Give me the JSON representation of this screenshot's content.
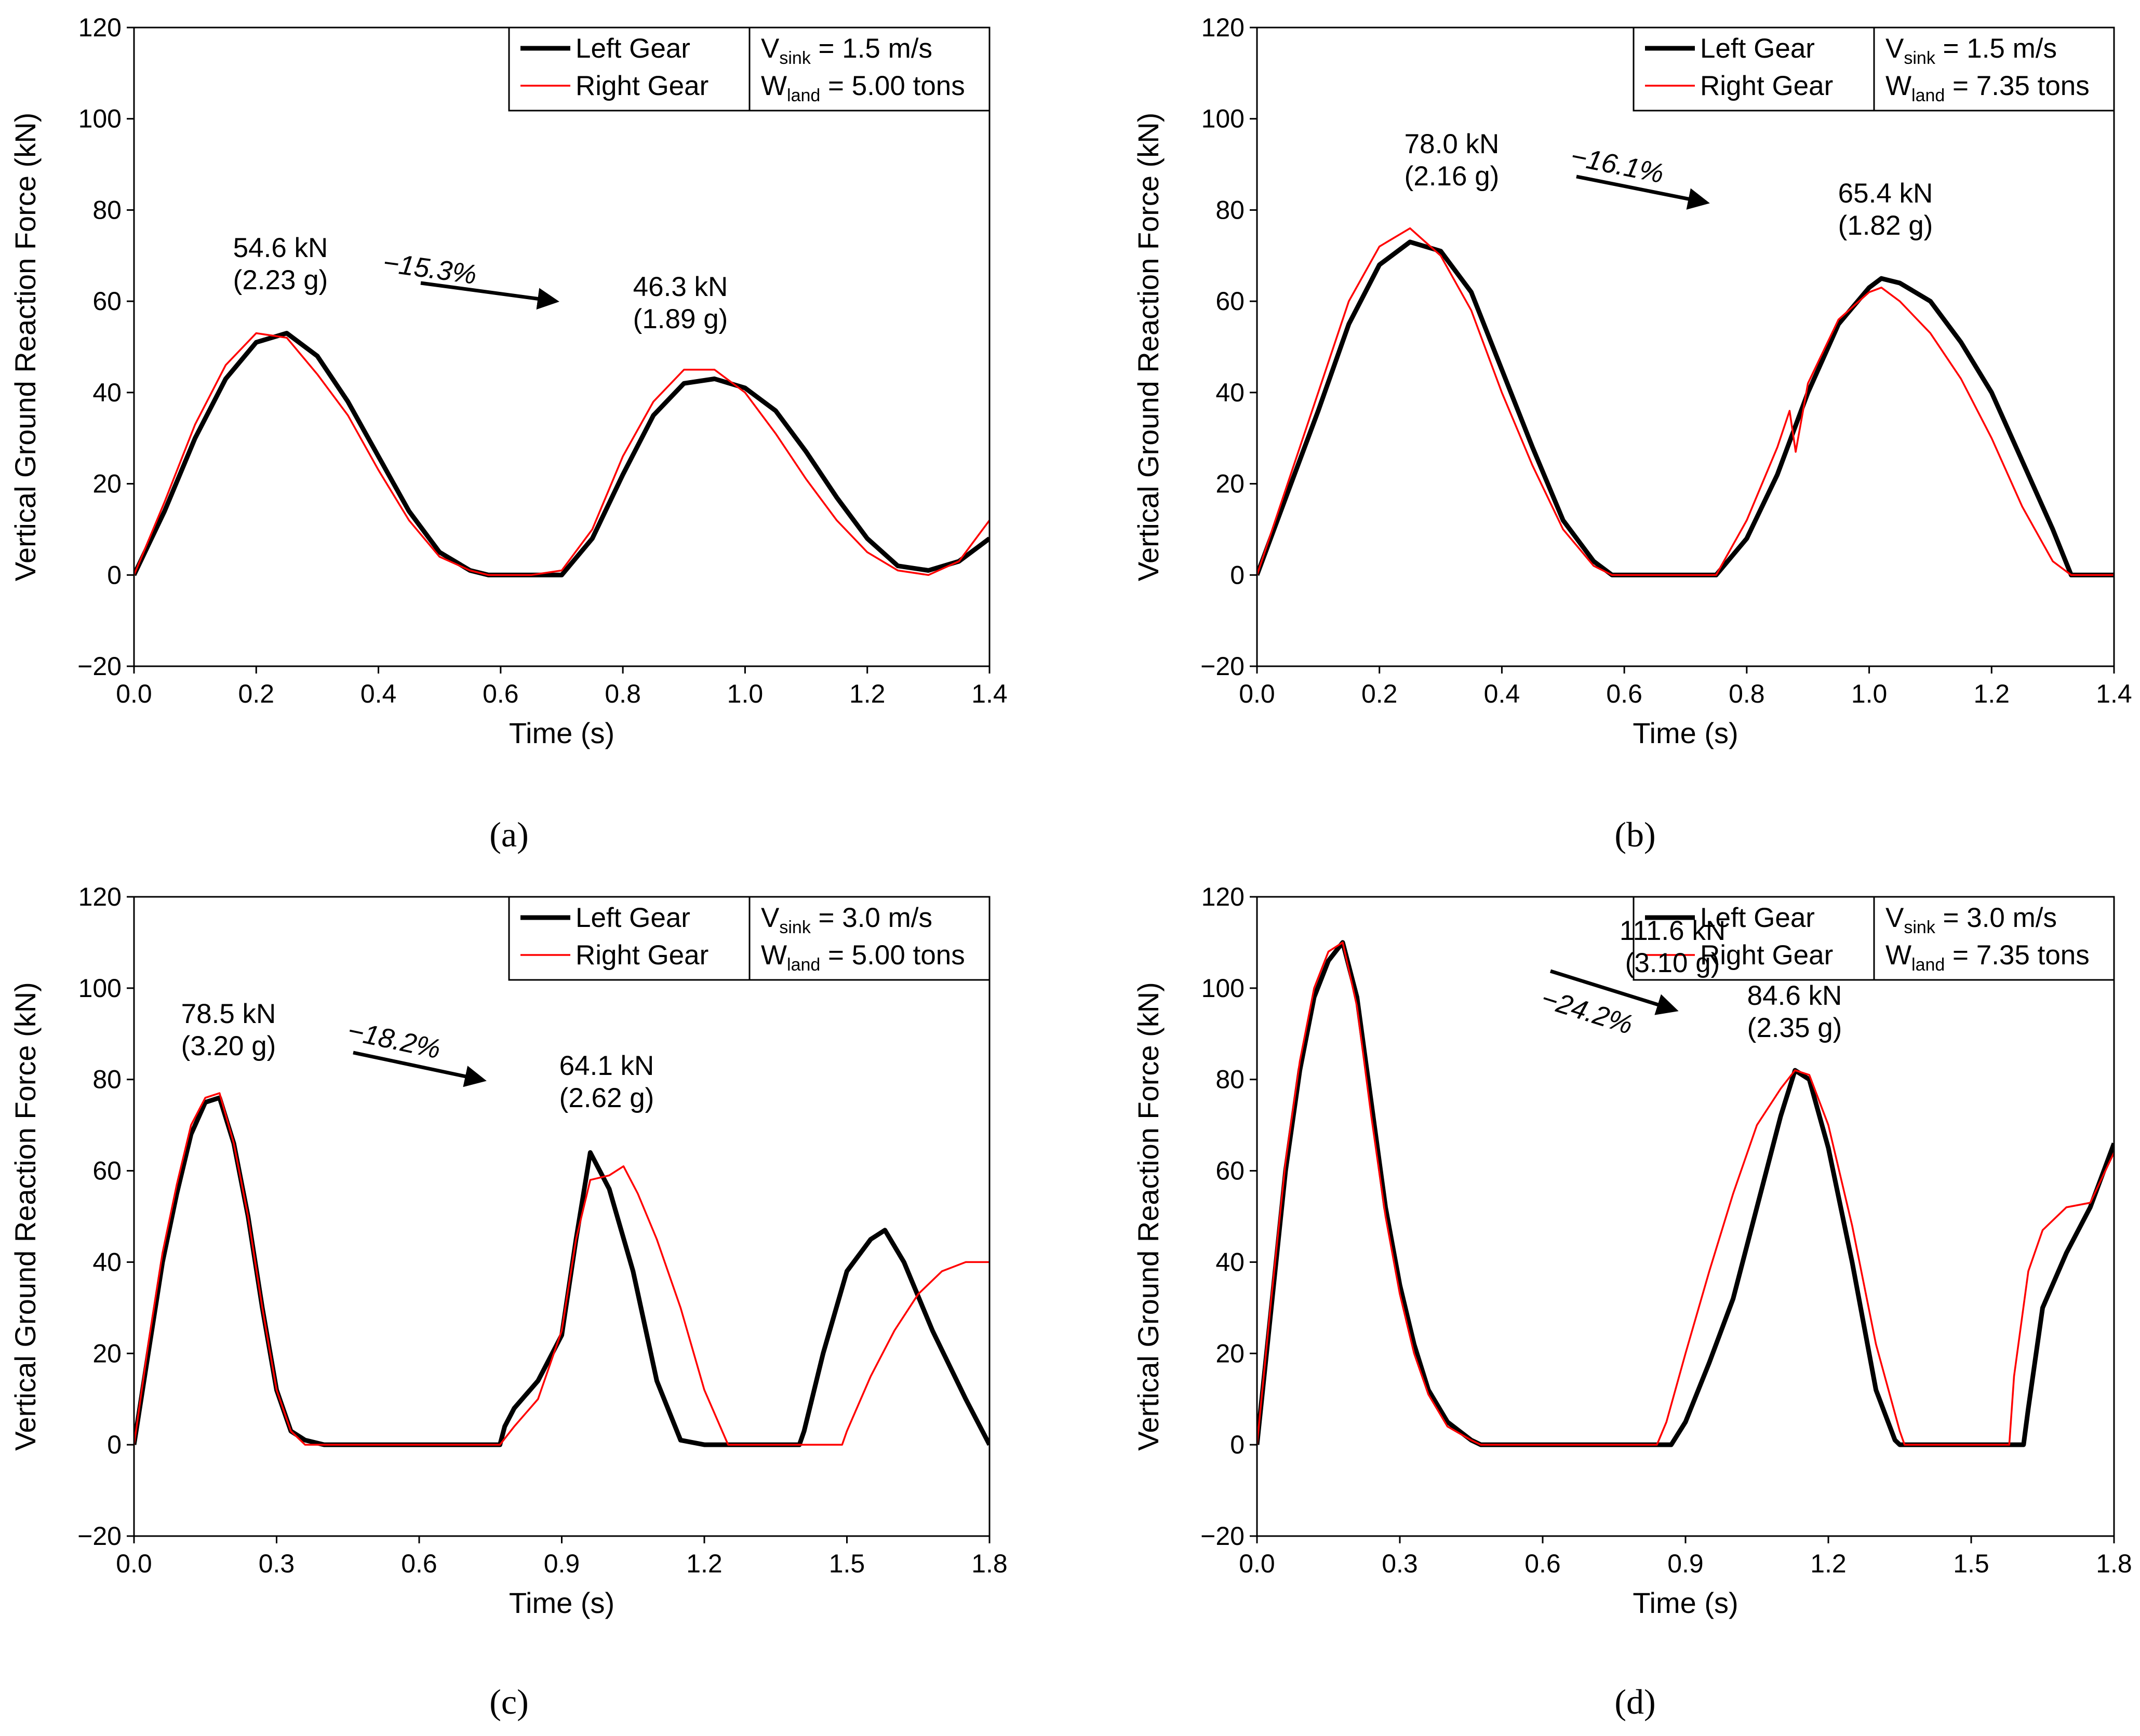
{
  "colors": {
    "left_gear": "#000000",
    "right_gear": "#ff0000",
    "axis": "#000000"
  },
  "chart_data": [
    {
      "type": "line",
      "panel_label": "(a)",
      "xlabel": "Time (s)",
      "ylabel": "Vertical Ground Reaction Force (kN)",
      "xlim": [
        0,
        1.4
      ],
      "ylim": [
        -20,
        120
      ],
      "xticks": [
        "0.0",
        "0.2",
        "0.4",
        "0.6",
        "0.8",
        "1.0",
        "1.2",
        "1.4"
      ],
      "yticks": [
        "−20",
        "0",
        "20",
        "40",
        "60",
        "80",
        "100",
        "120"
      ],
      "legend": {
        "left_label": "Left Gear",
        "right_label": "Right Gear",
        "vsink_prefix": "V",
        "vsink_sub": "sink",
        "vsink_value": " =  1.5 m/s",
        "wland_prefix": "W",
        "wland_sub": "land",
        "wland_value": " = 5.00 tons"
      },
      "annotations": {
        "peak1": "54.6 kN",
        "peak1_g": "(2.23 g)",
        "peak2": "46.3 kN",
        "peak2_g": "(1.89 g)",
        "reduction": "−15.3%"
      },
      "series": [
        {
          "name": "Left Gear",
          "x": [
            0,
            0.05,
            0.1,
            0.15,
            0.2,
            0.25,
            0.3,
            0.35,
            0.4,
            0.45,
            0.5,
            0.55,
            0.58,
            0.6,
            0.65,
            0.7,
            0.75,
            0.8,
            0.85,
            0.9,
            0.95,
            1.0,
            1.05,
            1.1,
            1.15,
            1.2,
            1.25,
            1.3,
            1.35,
            1.4
          ],
          "y": [
            0,
            14,
            30,
            43,
            51,
            53,
            48,
            38,
            26,
            14,
            5,
            1,
            0,
            0,
            0,
            0,
            8,
            22,
            35,
            42,
            43,
            41,
            36,
            27,
            17,
            8,
            2,
            1,
            3,
            8
          ]
        },
        {
          "name": "Right Gear",
          "x": [
            0,
            0.05,
            0.1,
            0.15,
            0.2,
            0.25,
            0.3,
            0.35,
            0.4,
            0.45,
            0.5,
            0.55,
            0.58,
            0.6,
            0.65,
            0.7,
            0.75,
            0.8,
            0.85,
            0.9,
            0.95,
            1.0,
            1.05,
            1.1,
            1.15,
            1.2,
            1.25,
            1.3,
            1.35,
            1.4
          ],
          "y": [
            0,
            16,
            33,
            46,
            53,
            52,
            44,
            35,
            23,
            12,
            4,
            1,
            0,
            0,
            0,
            1,
            10,
            26,
            38,
            45,
            45,
            40,
            31,
            21,
            12,
            5,
            1,
            0,
            3,
            12
          ]
        }
      ]
    },
    {
      "type": "line",
      "panel_label": "(b)",
      "xlabel": "Time (s)",
      "ylabel": "Vertical Ground Reaction Force (kN)",
      "xlim": [
        0,
        1.4
      ],
      "ylim": [
        -20,
        120
      ],
      "xticks": [
        "0.0",
        "0.2",
        "0.4",
        "0.6",
        "0.8",
        "1.0",
        "1.2",
        "1.4"
      ],
      "yticks": [
        "−20",
        "0",
        "20",
        "40",
        "60",
        "80",
        "100",
        "120"
      ],
      "legend": {
        "left_label": "Left Gear",
        "right_label": "Right Gear",
        "vsink_prefix": "V",
        "vsink_sub": "sink",
        "vsink_value": " =  1.5 m/s",
        "wland_prefix": "W",
        "wland_sub": "land",
        "wland_value": " = 7.35 tons"
      },
      "annotations": {
        "peak1": "78.0 kN",
        "peak1_g": "(2.16 g)",
        "peak2": "65.4 kN",
        "peak2_g": "(1.82 g)",
        "reduction": "−16.1%"
      },
      "series": [
        {
          "name": "Left Gear",
          "x": [
            0,
            0.05,
            0.1,
            0.15,
            0.2,
            0.25,
            0.3,
            0.35,
            0.4,
            0.45,
            0.5,
            0.55,
            0.58,
            0.6,
            0.7,
            0.75,
            0.8,
            0.85,
            0.9,
            0.95,
            1.0,
            1.02,
            1.05,
            1.1,
            1.15,
            1.2,
            1.25,
            1.3,
            1.33,
            1.35,
            1.4
          ],
          "y": [
            0,
            18,
            36,
            55,
            68,
            73,
            71,
            62,
            45,
            28,
            12,
            3,
            0,
            0,
            0,
            0,
            8,
            22,
            40,
            55,
            63,
            65,
            64,
            60,
            51,
            40,
            25,
            10,
            0,
            0,
            0
          ]
        },
        {
          "name": "Right Gear",
          "x": [
            0,
            0.05,
            0.1,
            0.15,
            0.2,
            0.25,
            0.3,
            0.35,
            0.4,
            0.45,
            0.5,
            0.55,
            0.58,
            0.6,
            0.7,
            0.75,
            0.8,
            0.85,
            0.87,
            0.88,
            0.9,
            0.95,
            1.0,
            1.02,
            1.05,
            1.1,
            1.15,
            1.2,
            1.25,
            1.3,
            1.33,
            1.35,
            1.4
          ],
          "y": [
            0,
            20,
            40,
            60,
            72,
            76,
            70,
            58,
            40,
            24,
            10,
            2,
            0,
            0,
            0,
            0,
            12,
            28,
            36,
            27,
            42,
            56,
            62,
            63,
            60,
            53,
            43,
            30,
            15,
            3,
            0,
            0,
            0
          ]
        }
      ]
    },
    {
      "type": "line",
      "panel_label": "(c)",
      "xlabel": "Time (s)",
      "ylabel": "Vertical Ground Reaction Force (kN)",
      "xlim": [
        0,
        1.8
      ],
      "ylim": [
        -20,
        120
      ],
      "xticks": [
        "0.0",
        "0.3",
        "0.6",
        "0.9",
        "1.2",
        "1.5",
        "1.8"
      ],
      "yticks": [
        "−20",
        "0",
        "20",
        "40",
        "60",
        "80",
        "100",
        "120"
      ],
      "legend": {
        "left_label": "Left Gear",
        "right_label": "Right Gear",
        "vsink_prefix": "V",
        "vsink_sub": "sink",
        "vsink_value": " =  3.0 m/s",
        "wland_prefix": "W",
        "wland_sub": "land",
        "wland_value": " = 5.00 tons"
      },
      "annotations": {
        "peak1": "78.5 kN",
        "peak1_g": "(3.20 g)",
        "peak2": "64.1 kN",
        "peak2_g": "(2.62 g)",
        "reduction": "−18.2%"
      },
      "series": [
        {
          "name": "Left Gear",
          "x": [
            0,
            0.03,
            0.06,
            0.09,
            0.12,
            0.15,
            0.18,
            0.21,
            0.24,
            0.27,
            0.3,
            0.33,
            0.36,
            0.4,
            0.6,
            0.77,
            0.78,
            0.8,
            0.85,
            0.9,
            0.93,
            0.96,
            0.98,
            1.0,
            1.05,
            1.1,
            1.15,
            1.2,
            1.4,
            1.41,
            1.45,
            1.5,
            1.55,
            1.58,
            1.62,
            1.68,
            1.75,
            1.8
          ],
          "y": [
            0,
            20,
            40,
            55,
            68,
            75,
            76,
            66,
            50,
            30,
            12,
            3,
            1,
            0,
            0,
            0,
            4,
            8,
            14,
            24,
            45,
            64,
            60,
            56,
            38,
            14,
            1,
            0,
            0,
            3,
            20,
            38,
            45,
            47,
            40,
            25,
            10,
            0
          ]
        },
        {
          "name": "Right Gear",
          "x": [
            0,
            0.03,
            0.06,
            0.09,
            0.12,
            0.15,
            0.18,
            0.21,
            0.24,
            0.27,
            0.3,
            0.33,
            0.36,
            0.4,
            0.6,
            0.77,
            0.8,
            0.85,
            0.9,
            0.93,
            0.96,
            1.0,
            1.03,
            1.06,
            1.1,
            1.15,
            1.2,
            1.25,
            1.3,
            1.49,
            1.5,
            1.55,
            1.6,
            1.65,
            1.7,
            1.75,
            1.8
          ],
          "y": [
            0,
            22,
            42,
            57,
            70,
            76,
            77,
            66,
            50,
            30,
            12,
            3,
            0,
            0,
            0,
            0,
            4,
            10,
            25,
            45,
            58,
            59,
            61,
            55,
            45,
            30,
            12,
            0,
            0,
            0,
            3,
            15,
            25,
            33,
            38,
            40,
            40
          ]
        }
      ]
    },
    {
      "type": "line",
      "panel_label": "(d)",
      "xlabel": "Time (s)",
      "ylabel": "Vertical Ground Reaction Force (kN)",
      "xlim": [
        0,
        1.8
      ],
      "ylim": [
        -20,
        120
      ],
      "xticks": [
        "0.0",
        "0.3",
        "0.6",
        "0.9",
        "1.2",
        "1.5",
        "1.8"
      ],
      "yticks": [
        "−20",
        "0",
        "20",
        "40",
        "60",
        "80",
        "100",
        "120"
      ],
      "legend": {
        "left_label": "Left Gear",
        "right_label": "Right Gear",
        "vsink_prefix": "V",
        "vsink_sub": "sink",
        "vsink_value": " =  3.0 m/s",
        "wland_prefix": "W",
        "wland_sub": "land",
        "wland_value": " = 7.35 tons"
      },
      "annotations": {
        "peak1": "111.6 kN",
        "peak1_g": "(3.10 g)",
        "peak2": "84.6 kN",
        "peak2_g": "(2.35 g)",
        "reduction": "−24.2%"
      },
      "series": [
        {
          "name": "Left Gear",
          "x": [
            0,
            0.03,
            0.06,
            0.09,
            0.12,
            0.15,
            0.18,
            0.21,
            0.24,
            0.27,
            0.3,
            0.33,
            0.36,
            0.4,
            0.45,
            0.47,
            0.6,
            0.87,
            0.9,
            0.95,
            1.0,
            1.05,
            1.1,
            1.13,
            1.16,
            1.2,
            1.25,
            1.3,
            1.34,
            1.35,
            1.61,
            1.62,
            1.65,
            1.7,
            1.75,
            1.8
          ],
          "y": [
            0,
            30,
            60,
            82,
            98,
            106,
            110,
            98,
            75,
            52,
            35,
            22,
            12,
            5,
            1,
            0,
            0,
            0,
            5,
            18,
            32,
            52,
            72,
            82,
            80,
            65,
            40,
            12,
            1,
            0,
            0,
            8,
            30,
            42,
            52,
            66
          ]
        },
        {
          "name": "Right Gear",
          "x": [
            0,
            0.03,
            0.06,
            0.09,
            0.12,
            0.15,
            0.18,
            0.21,
            0.24,
            0.27,
            0.3,
            0.33,
            0.36,
            0.4,
            0.45,
            0.47,
            0.6,
            0.84,
            0.86,
            0.9,
            0.95,
            1.0,
            1.05,
            1.1,
            1.13,
            1.16,
            1.2,
            1.25,
            1.3,
            1.35,
            1.36,
            1.58,
            1.59,
            1.62,
            1.65,
            1.7,
            1.75,
            1.8
          ],
          "y": [
            0,
            32,
            62,
            84,
            100,
            108,
            110,
            96,
            72,
            50,
            33,
            20,
            11,
            4,
            1,
            0,
            0,
            0,
            5,
            20,
            38,
            55,
            70,
            78,
            82,
            81,
            70,
            48,
            22,
            3,
            0,
            0,
            15,
            38,
            47,
            52,
            53,
            64
          ]
        }
      ]
    }
  ]
}
